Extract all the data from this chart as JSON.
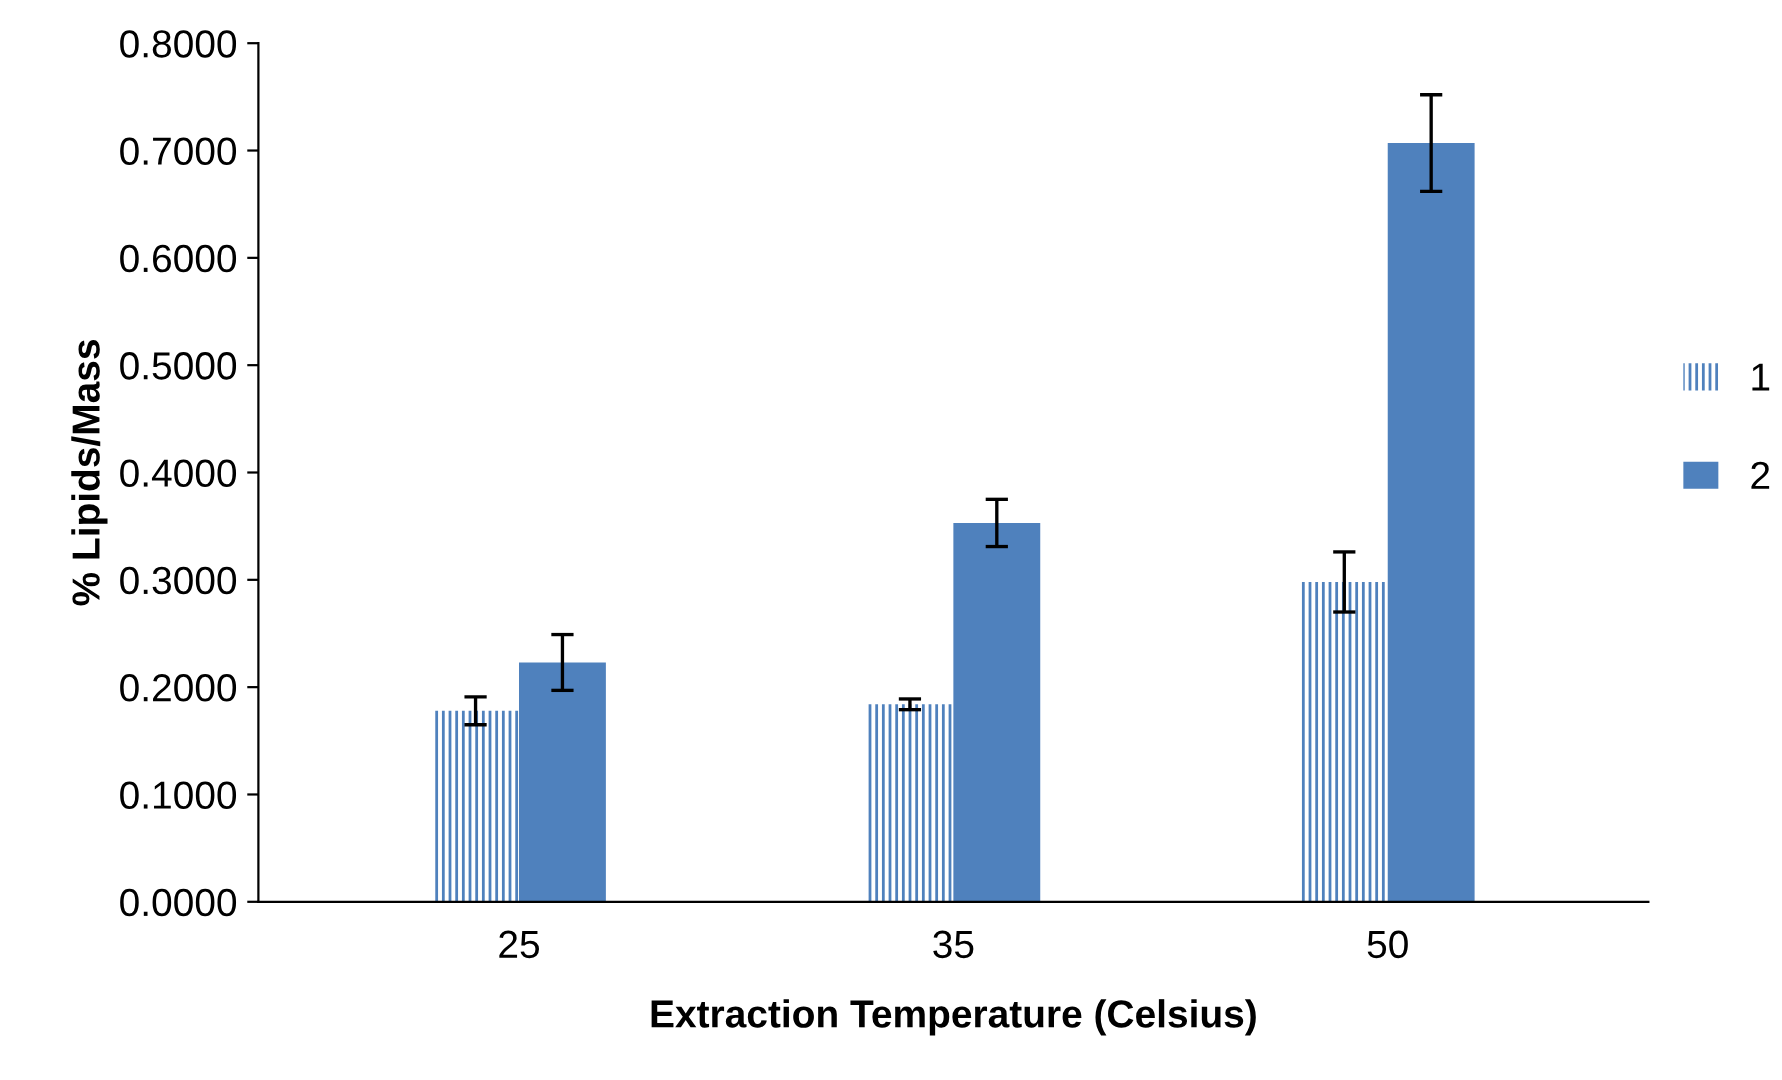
{
  "chart_data": {
    "type": "bar",
    "xlabel": "Extraction Temperature (Celsius)",
    "ylabel": "% Lipids/Mass",
    "categories": [
      "25",
      "35",
      "50"
    ],
    "series": [
      {
        "name": "1",
        "color": "#4f81bd",
        "values": [
          0.178,
          0.184,
          0.298
        ],
        "errors": [
          0.013,
          0.005,
          0.028
        ]
      },
      {
        "name": "2",
        "color": "#4f81bd",
        "values": [
          0.223,
          0.353,
          0.707
        ],
        "errors": [
          0.026,
          0.022,
          0.045
        ]
      }
    ],
    "ylim": [
      0,
      0.8
    ],
    "yticks": [
      {
        "value": 0,
        "label": "0.0000"
      },
      {
        "value": 0.1,
        "label": "0.1000"
      },
      {
        "value": 0.2,
        "label": "0.2000"
      },
      {
        "value": 0.3,
        "label": "0.3000"
      },
      {
        "value": 0.4,
        "label": "0.4000"
      },
      {
        "value": 0.5,
        "label": "0.5000"
      },
      {
        "value": 0.6,
        "label": "0.6000"
      },
      {
        "value": 0.7,
        "label": "0.7000"
      },
      {
        "value": 0.8,
        "label": "0.8000"
      }
    ],
    "grid": false,
    "legend": "right"
  }
}
